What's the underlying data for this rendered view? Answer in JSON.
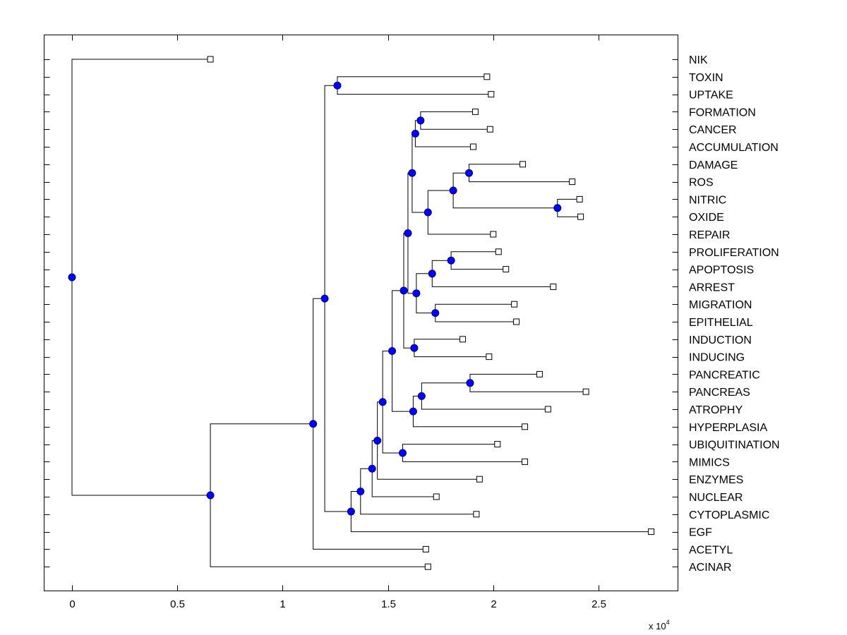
{
  "chart_data": {
    "type": "dendrogram",
    "title": "",
    "xlabel": "",
    "ylabel": "",
    "x_multiplier_label": "x 10",
    "x_multiplier_exponent": "4",
    "xlim": [
      -0.13,
      2.88
    ],
    "xticks": [
      0,
      0.5,
      1,
      1.5,
      2,
      2.5
    ],
    "xtick_labels": [
      "0",
      "0.5",
      "1",
      "1.5",
      "2",
      "2.5"
    ],
    "grid": false,
    "colors": {
      "internal_node": "#0000ff",
      "leaf_node": "#ffffff",
      "line": "#000000"
    },
    "leaves": [
      {
        "label": "NIK",
        "x": 0.657
      },
      {
        "label": "TOXIN",
        "x": 1.97
      },
      {
        "label": "UPTAKE",
        "x": 1.99
      },
      {
        "label": "FORMATION",
        "x": 1.915
      },
      {
        "label": "CANCER",
        "x": 1.985
      },
      {
        "label": "ACCUMULATION",
        "x": 1.905
      },
      {
        "label": "DAMAGE",
        "x": 2.14
      },
      {
        "label": "ROS",
        "x": 2.375
      },
      {
        "label": "NITRIC",
        "x": 2.41
      },
      {
        "label": "OXIDE",
        "x": 2.415
      },
      {
        "label": "REPAIR",
        "x": 2.0
      },
      {
        "label": "PROLIFERATION",
        "x": 2.025
      },
      {
        "label": "APOPTOSIS",
        "x": 2.06
      },
      {
        "label": "ARREST",
        "x": 2.285
      },
      {
        "label": "MIGRATION",
        "x": 2.1
      },
      {
        "label": "EPITHELIAL",
        "x": 2.11
      },
      {
        "label": "INDUCTION",
        "x": 1.855
      },
      {
        "label": "INDUCING",
        "x": 1.98
      },
      {
        "label": "PANCREATIC",
        "x": 2.22
      },
      {
        "label": "PANCREAS",
        "x": 2.44
      },
      {
        "label": "ATROPHY",
        "x": 2.26
      },
      {
        "label": "HYPERPLASIA",
        "x": 2.15
      },
      {
        "label": "UBIQUITINATION",
        "x": 2.02
      },
      {
        "label": "MIMICS",
        "x": 2.15
      },
      {
        "label": "ENZYMES",
        "x": 1.935
      },
      {
        "label": "NUCLEAR",
        "x": 1.73
      },
      {
        "label": "CYTOPLASMIC",
        "x": 1.92
      },
      {
        "label": "EGF",
        "x": 2.75
      },
      {
        "label": "ACETYL",
        "x": 1.68
      },
      {
        "label": "ACINAR",
        "x": 1.69
      }
    ],
    "nodes": [
      {
        "id": "n_toxin_uptake",
        "x": 1.26,
        "children": [
          "L1",
          "L2"
        ]
      },
      {
        "id": "n_form_cancer",
        "x": 1.655,
        "children": [
          "L3",
          "L4"
        ]
      },
      {
        "id": "n_fc_accum",
        "x": 1.63,
        "children": [
          "n_form_cancer",
          "L5"
        ]
      },
      {
        "id": "n_damage_ros",
        "x": 1.885,
        "children": [
          "L6",
          "L7"
        ]
      },
      {
        "id": "n_nitric_oxide",
        "x": 2.305,
        "children": [
          "L8",
          "L9"
        ]
      },
      {
        "id": "n_dr_no",
        "x": 1.81,
        "children": [
          "n_damage_ros",
          "n_nitric_oxide"
        ]
      },
      {
        "id": "n_drno_repair",
        "x": 1.69,
        "children": [
          "n_dr_no",
          "L10"
        ]
      },
      {
        "id": "n_upper_a",
        "x": 1.615,
        "children": [
          "n_fc_accum",
          "n_drno_repair"
        ]
      },
      {
        "id": "n_prolif_apop",
        "x": 1.8,
        "children": [
          "L11",
          "L12"
        ]
      },
      {
        "id": "n_pa_arrest",
        "x": 1.71,
        "children": [
          "n_prolif_apop",
          "L13"
        ]
      },
      {
        "id": "n_mig_epi",
        "x": 1.725,
        "children": [
          "L14",
          "L15"
        ]
      },
      {
        "id": "n_paa_me",
        "x": 1.635,
        "children": [
          "n_pa_arrest",
          "n_mig_epi"
        ]
      },
      {
        "id": "n_ua_paame",
        "x": 1.595,
        "children": [
          "n_upper_a",
          "n_paa_me"
        ]
      },
      {
        "id": "n_induct",
        "x": 1.625,
        "children": [
          "L16",
          "L17"
        ]
      },
      {
        "id": "n_upper_b",
        "x": 1.575,
        "children": [
          "n_ua_paame",
          "n_induct"
        ]
      },
      {
        "id": "n_panc",
        "x": 1.89,
        "children": [
          "L18",
          "L19"
        ]
      },
      {
        "id": "n_panc_atrophy",
        "x": 1.66,
        "children": [
          "n_panc",
          "L20"
        ]
      },
      {
        "id": "n_pa_hyper",
        "x": 1.62,
        "children": [
          "n_panc_atrophy",
          "L21"
        ]
      },
      {
        "id": "n_upper_c",
        "x": 1.52,
        "children": [
          "n_upper_b",
          "n_pa_hyper"
        ]
      },
      {
        "id": "n_ubiq_mimics",
        "x": 1.57,
        "children": [
          "L22",
          "L23"
        ]
      },
      {
        "id": "n_uc_um",
        "x": 1.475,
        "children": [
          "n_upper_c",
          "n_ubiq_mimics"
        ]
      },
      {
        "id": "n_enzymes",
        "x": 1.45,
        "children": [
          "n_uc_um",
          "L24"
        ]
      },
      {
        "id": "n_nuclear",
        "x": 1.425,
        "children": [
          "n_enzymes",
          "L25"
        ]
      },
      {
        "id": "n_cyto",
        "x": 1.37,
        "children": [
          "n_nuclear",
          "L26"
        ]
      },
      {
        "id": "n_egf",
        "x": 1.325,
        "children": [
          "n_cyto",
          "L27"
        ]
      },
      {
        "id": "n_mid",
        "x": 1.2,
        "children": [
          "n_toxin_uptake",
          "n_egf"
        ]
      },
      {
        "id": "n_acetyl",
        "x": 1.145,
        "children": [
          "n_mid",
          "L28"
        ]
      },
      {
        "id": "n_acinar",
        "x": 0.657,
        "children": [
          "n_acetyl",
          "L29"
        ]
      },
      {
        "id": "n_root",
        "x": 0.0,
        "children": [
          "L0",
          "n_acinar"
        ]
      }
    ]
  }
}
